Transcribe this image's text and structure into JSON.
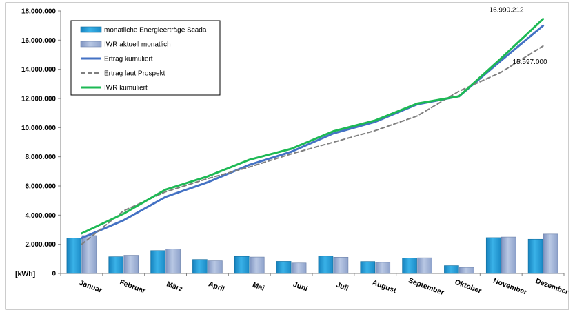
{
  "chart_data": {
    "type": "bar",
    "y_unit_label": "[kWh]",
    "categories": [
      "Januar",
      "Februar",
      "März",
      "April",
      "Mai",
      "Juni",
      "Juli",
      "August",
      "September",
      "Oktober",
      "November",
      "Dezember"
    ],
    "ylim": [
      0,
      18000000
    ],
    "yticks": [
      "18.000.000",
      "16.000.000",
      "14.000.000",
      "12.000.000",
      "10.000.000",
      "8.000.000",
      "6.000.000",
      "4.000.000",
      "2.000.000",
      "0"
    ],
    "ytick_values": [
      18000000,
      16000000,
      14000000,
      12000000,
      10000000,
      8000000,
      6000000,
      4000000,
      2000000,
      0
    ],
    "grid": false,
    "legend_position": "top-left",
    "series": [
      {
        "name": "monatliche Energieerträge Scada",
        "kind": "bar",
        "color": "#1E9FD9",
        "values": [
          2430000,
          1150000,
          1570000,
          960000,
          1170000,
          830000,
          1190000,
          820000,
          1070000,
          540000,
          2460000,
          2350000
        ]
      },
      {
        "name": "IWR aktuell monatlich",
        "kind": "bar",
        "color": "#8EA6CF",
        "values": [
          2600000,
          1250000,
          1680000,
          870000,
          1130000,
          720000,
          1120000,
          760000,
          1080000,
          420000,
          2500000,
          2700000
        ]
      },
      {
        "name": "Ertrag kumuliert",
        "kind": "line",
        "color": "#4472C4",
        "values": [
          2430000,
          3650000,
          5250000,
          6250000,
          7450000,
          8350000,
          9600000,
          10400000,
          11600000,
          12150000,
          14600000,
          16990212
        ]
      },
      {
        "name": "Ertrag laut Prospekt",
        "kind": "line-dashed",
        "color": "#7F7F7F",
        "values": [
          2000000,
          4300000,
          5600000,
          6500000,
          7300000,
          8200000,
          9000000,
          9800000,
          10800000,
          12500000,
          13800000,
          15597000
        ]
      },
      {
        "name": "IWR kumuliert",
        "kind": "line",
        "color": "#1DB954",
        "values": [
          2750000,
          4100000,
          5750000,
          6650000,
          7800000,
          8550000,
          9750000,
          10500000,
          11650000,
          12150000,
          14750000,
          17450000
        ]
      }
    ],
    "annotations": [
      {
        "text": "16.990.212",
        "series": 2,
        "index": 11
      },
      {
        "text": "15.597.000",
        "series": 3,
        "index": 11
      }
    ]
  }
}
